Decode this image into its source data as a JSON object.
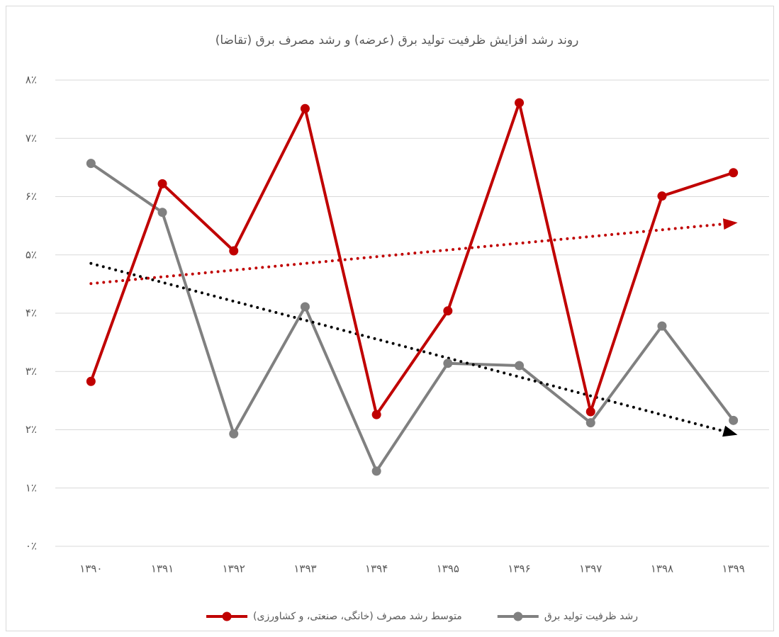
{
  "chart_data": {
    "type": "line",
    "title": "روند رشد افزایش ظرفیت تولید برق (عرضه) و رشد مصرف برق (تقاضا)",
    "categories": [
      "۱۳۹۰",
      "۱۳۹۱",
      "۱۳۹۲",
      "۱۳۹۳",
      "۱۳۹۴",
      "۱۳۹۵",
      "۱۳۹۶",
      "۱۳۹۷",
      "۱۳۹۸",
      "۱۳۹۹"
    ],
    "series": [
      {
        "name": "رشد ظرفیت تولید برق",
        "color": "#808080",
        "trendline_color": "#000000",
        "values": [
          6.57,
          5.73,
          1.93,
          4.11,
          1.29,
          3.14,
          3.1,
          2.12,
          3.78,
          2.16
        ]
      },
      {
        "name": "متوسط رشد مصرف (خانگی، صنعتی، و کشاورزی)",
        "color": "#c00000",
        "trendline_color": "#c00000",
        "values": [
          2.83,
          6.22,
          5.07,
          7.51,
          2.26,
          4.04,
          7.61,
          2.31,
          6.01,
          6.41
        ]
      }
    ],
    "ylim": [
      0,
      8
    ],
    "yticks": [
      {
        "value": 0,
        "label": "۰٪"
      },
      {
        "value": 1,
        "label": "۱٪"
      },
      {
        "value": 2,
        "label": "۲٪"
      },
      {
        "value": 3,
        "label": "۳٪"
      },
      {
        "value": 4,
        "label": "۴٪"
      },
      {
        "value": 5,
        "label": "۵٪"
      },
      {
        "value": 6,
        "label": "۶٪"
      },
      {
        "value": 7,
        "label": "۷٪"
      },
      {
        "value": 8,
        "label": "۸٪"
      }
    ],
    "grid": true,
    "trendline": true,
    "legend": "bottom"
  }
}
